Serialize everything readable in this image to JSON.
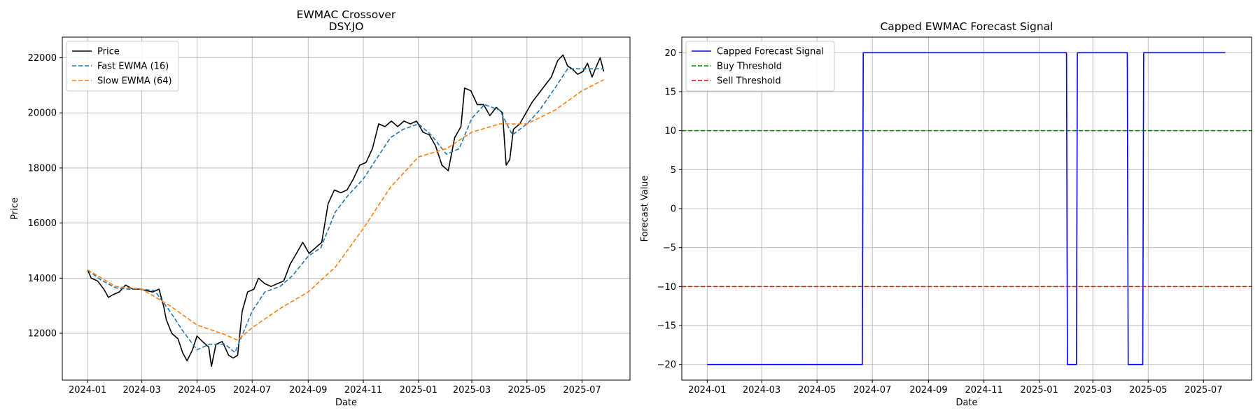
{
  "chart_data": [
    {
      "type": "line",
      "title": "EWMAC Crossover",
      "subtitle": "DSY.JO",
      "xlabel": "Date",
      "ylabel": "Price",
      "xlim": [
        "2023-12-04",
        "2025-08-23"
      ],
      "ylim": [
        10300,
        22750
      ],
      "grid": true,
      "legend_position": "top-left",
      "x_ticks": [
        "2024-01",
        "2024-03",
        "2024-05",
        "2024-07",
        "2024-09",
        "2024-11",
        "2025-01",
        "2025-03",
        "2025-05",
        "2025-07"
      ],
      "y_ticks": [
        12000,
        14000,
        16000,
        18000,
        20000,
        22000
      ],
      "series": [
        {
          "name": "Price",
          "color": "#000000",
          "style": "solid",
          "points": [
            [
              "2024-01-01",
              14300
            ],
            [
              "2024-01-05",
              14000
            ],
            [
              "2024-01-12",
              13900
            ],
            [
              "2024-01-19",
              13600
            ],
            [
              "2024-01-24",
              13300
            ],
            [
              "2024-01-29",
              13400
            ],
            [
              "2024-02-05",
              13500
            ],
            [
              "2024-02-12",
              13750
            ],
            [
              "2024-02-20",
              13600
            ],
            [
              "2024-02-28",
              13600
            ],
            [
              "2024-03-06",
              13550
            ],
            [
              "2024-03-13",
              13500
            ],
            [
              "2024-03-20",
              13600
            ],
            [
              "2024-03-25",
              13000
            ],
            [
              "2024-03-28",
              12500
            ],
            [
              "2024-04-03",
              12000
            ],
            [
              "2024-04-10",
              11800
            ],
            [
              "2024-04-15",
              11300
            ],
            [
              "2024-04-20",
              11000
            ],
            [
              "2024-04-26",
              11400
            ],
            [
              "2024-05-01",
              11900
            ],
            [
              "2024-05-07",
              11700
            ],
            [
              "2024-05-14",
              11500
            ],
            [
              "2024-05-17",
              10800
            ],
            [
              "2024-05-22",
              11600
            ],
            [
              "2024-05-29",
              11700
            ],
            [
              "2024-06-05",
              11200
            ],
            [
              "2024-06-10",
              11100
            ],
            [
              "2024-06-15",
              11200
            ],
            [
              "2024-06-20",
              12800
            ],
            [
              "2024-06-26",
              13500
            ],
            [
              "2024-07-03",
              13600
            ],
            [
              "2024-07-08",
              14000
            ],
            [
              "2024-07-15",
              13800
            ],
            [
              "2024-07-22",
              13700
            ],
            [
              "2024-07-29",
              13800
            ],
            [
              "2024-08-05",
              13900
            ],
            [
              "2024-08-12",
              14500
            ],
            [
              "2024-08-19",
              14900
            ],
            [
              "2024-08-26",
              15300
            ],
            [
              "2024-09-02",
              14900
            ],
            [
              "2024-09-09",
              15100
            ],
            [
              "2024-09-16",
              15300
            ],
            [
              "2024-09-23",
              16700
            ],
            [
              "2024-09-30",
              17200
            ],
            [
              "2024-10-07",
              17100
            ],
            [
              "2024-10-14",
              17200
            ],
            [
              "2024-10-21",
              17600
            ],
            [
              "2024-10-28",
              18100
            ],
            [
              "2024-11-04",
              18200
            ],
            [
              "2024-11-11",
              18700
            ],
            [
              "2024-11-18",
              19600
            ],
            [
              "2024-11-25",
              19500
            ],
            [
              "2024-12-02",
              19700
            ],
            [
              "2024-12-09",
              19500
            ],
            [
              "2024-12-16",
              19700
            ],
            [
              "2024-12-23",
              19600
            ],
            [
              "2024-12-30",
              19700
            ],
            [
              "2025-01-06",
              19300
            ],
            [
              "2025-01-13",
              19200
            ],
            [
              "2025-01-20",
              18800
            ],
            [
              "2025-01-27",
              18100
            ],
            [
              "2025-02-03",
              17900
            ],
            [
              "2025-02-10",
              19100
            ],
            [
              "2025-02-17",
              19500
            ],
            [
              "2025-02-21",
              20900
            ],
            [
              "2025-02-28",
              20800
            ],
            [
              "2025-03-07",
              20300
            ],
            [
              "2025-03-14",
              20300
            ],
            [
              "2025-03-21",
              19900
            ],
            [
              "2025-03-28",
              20200
            ],
            [
              "2025-04-04",
              20000
            ],
            [
              "2025-04-08",
              18100
            ],
            [
              "2025-04-12",
              18300
            ],
            [
              "2025-04-16",
              19400
            ],
            [
              "2025-04-23",
              19600
            ],
            [
              "2025-04-30",
              20000
            ],
            [
              "2025-05-07",
              20400
            ],
            [
              "2025-05-14",
              20700
            ],
            [
              "2025-05-21",
              21000
            ],
            [
              "2025-05-28",
              21300
            ],
            [
              "2025-06-04",
              21900
            ],
            [
              "2025-06-10",
              22100
            ],
            [
              "2025-06-15",
              21700
            ],
            [
              "2025-06-20",
              21600
            ],
            [
              "2025-06-26",
              21400
            ],
            [
              "2025-07-02",
              21500
            ],
            [
              "2025-07-07",
              21800
            ],
            [
              "2025-07-12",
              21300
            ],
            [
              "2025-07-17",
              21700
            ],
            [
              "2025-07-21",
              22000
            ],
            [
              "2025-07-25",
              21500
            ]
          ]
        },
        {
          "name": "Fast EWMA (16)",
          "color": "#1f77b4",
          "style": "dashed",
          "points": [
            [
              "2024-01-01",
              14300
            ],
            [
              "2024-01-15",
              13950
            ],
            [
              "2024-02-01",
              13650
            ],
            [
              "2024-02-15",
              13600
            ],
            [
              "2024-03-01",
              13600
            ],
            [
              "2024-03-15",
              13550
            ],
            [
              "2024-04-01",
              12800
            ],
            [
              "2024-04-15",
              12100
            ],
            [
              "2024-05-01",
              11400
            ],
            [
              "2024-05-15",
              11600
            ],
            [
              "2024-06-01",
              11600
            ],
            [
              "2024-06-12",
              11300
            ],
            [
              "2024-07-01",
              12800
            ],
            [
              "2024-07-15",
              13500
            ],
            [
              "2024-08-01",
              13700
            ],
            [
              "2024-08-15",
              14100
            ],
            [
              "2024-09-01",
              14800
            ],
            [
              "2024-09-15",
              15100
            ],
            [
              "2024-10-01",
              16400
            ],
            [
              "2024-10-15",
              17000
            ],
            [
              "2024-11-01",
              17600
            ],
            [
              "2024-11-15",
              18300
            ],
            [
              "2024-12-01",
              19100
            ],
            [
              "2024-12-15",
              19400
            ],
            [
              "2025-01-01",
              19600
            ],
            [
              "2025-01-15",
              19200
            ],
            [
              "2025-02-01",
              18500
            ],
            [
              "2025-02-15",
              18700
            ],
            [
              "2025-03-01",
              19800
            ],
            [
              "2025-03-15",
              20300
            ],
            [
              "2025-04-01",
              20100
            ],
            [
              "2025-04-15",
              19200
            ],
            [
              "2025-05-01",
              19600
            ],
            [
              "2025-05-15",
              20100
            ],
            [
              "2025-06-01",
              20900
            ],
            [
              "2025-06-15",
              21600
            ],
            [
              "2025-07-01",
              21600
            ],
            [
              "2025-07-25",
              21600
            ]
          ]
        },
        {
          "name": "Slow EWMA (64)",
          "color": "#ff7f0e",
          "style": "dashed",
          "points": [
            [
              "2024-01-01",
              14300
            ],
            [
              "2024-02-01",
              13700
            ],
            [
              "2024-03-01",
              13600
            ],
            [
              "2024-04-01",
              13000
            ],
            [
              "2024-05-01",
              12300
            ],
            [
              "2024-06-01",
              11950
            ],
            [
              "2024-06-15",
              11750
            ],
            [
              "2024-07-01",
              12200
            ],
            [
              "2024-08-01",
              12900
            ],
            [
              "2024-09-01",
              13500
            ],
            [
              "2024-10-01",
              14400
            ],
            [
              "2024-11-01",
              15800
            ],
            [
              "2024-12-01",
              17300
            ],
            [
              "2025-01-01",
              18400
            ],
            [
              "2025-02-01",
              18700
            ],
            [
              "2025-03-01",
              19300
            ],
            [
              "2025-04-01",
              19600
            ],
            [
              "2025-05-01",
              19600
            ],
            [
              "2025-06-01",
              20100
            ],
            [
              "2025-07-01",
              20800
            ],
            [
              "2025-07-25",
              21200
            ]
          ]
        }
      ]
    },
    {
      "type": "line",
      "title": "Capped EWMAC Forecast Signal",
      "xlabel": "Date",
      "ylabel": "Forecast Value",
      "xlim": [
        "2023-12-04",
        "2025-08-23"
      ],
      "ylim": [
        -22,
        22
      ],
      "grid": true,
      "legend_position": "top-left",
      "x_ticks": [
        "2024-01",
        "2024-03",
        "2024-05",
        "2024-07",
        "2024-09",
        "2024-11",
        "2025-01",
        "2025-03",
        "2025-05",
        "2025-07"
      ],
      "y_ticks": [
        -20,
        -15,
        -10,
        -5,
        0,
        5,
        10,
        15,
        20
      ],
      "series": [
        {
          "name": "Capped Forecast Signal",
          "color": "#0000ff",
          "style": "solid",
          "points": [
            [
              "2024-01-01",
              -20
            ],
            [
              "2024-06-20",
              -20
            ],
            [
              "2024-06-21",
              20
            ],
            [
              "2025-01-31",
              20
            ],
            [
              "2025-02-01",
              -20
            ],
            [
              "2025-02-11",
              -20
            ],
            [
              "2025-02-12",
              20
            ],
            [
              "2025-04-08",
              20
            ],
            [
              "2025-04-09",
              -20
            ],
            [
              "2025-04-25",
              -20
            ],
            [
              "2025-04-26",
              20
            ],
            [
              "2025-07-25",
              20
            ]
          ]
        },
        {
          "name": "Buy Threshold",
          "color": "#008000",
          "style": "dashed",
          "value": 10
        },
        {
          "name": "Sell Threshold",
          "color": "#ff0000",
          "style": "dashed",
          "value": -10
        }
      ]
    }
  ]
}
